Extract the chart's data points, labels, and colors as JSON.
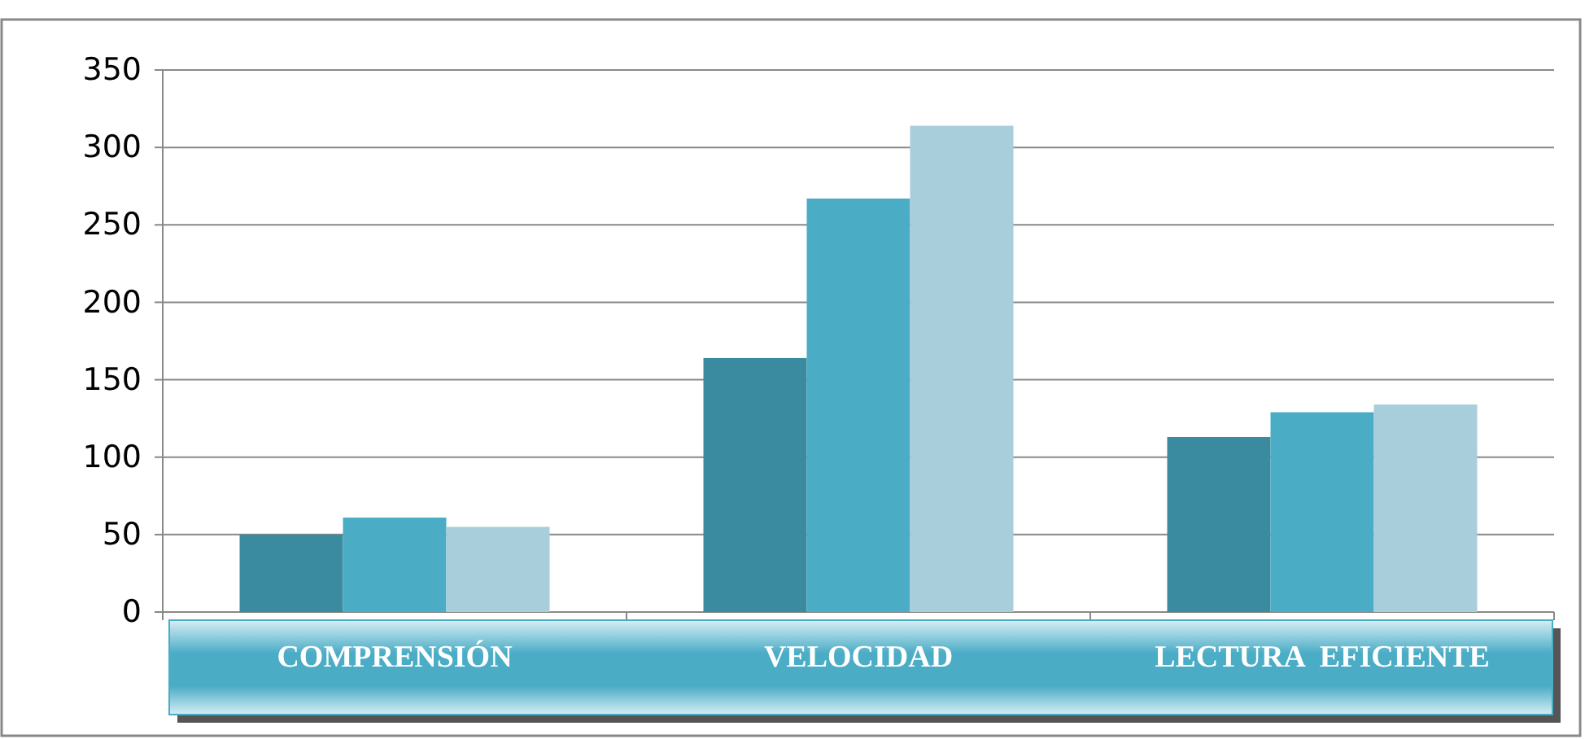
{
  "chart_data": {
    "type": "bar",
    "categories": [
      "COMPRENSIÓN",
      "VELOCIDAD",
      "LECTURA  EFICIENTE"
    ],
    "series": [
      {
        "color": "#3a8ba0",
        "values": [
          50,
          164,
          113
        ]
      },
      {
        "color": "#4bacc6",
        "values": [
          61,
          267,
          129
        ]
      },
      {
        "color": "#a8cedb",
        "values": [
          55,
          314,
          134
        ]
      }
    ],
    "ylim": [
      0,
      350
    ],
    "yticks": [
      0,
      50,
      100,
      150,
      200,
      250,
      300,
      350
    ],
    "grid": "y"
  }
}
